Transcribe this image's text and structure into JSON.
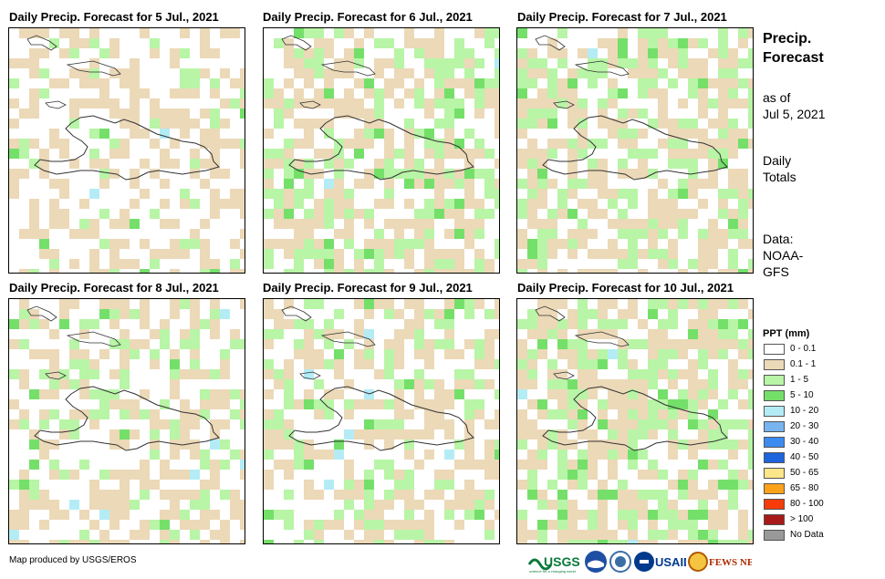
{
  "panels": [
    {
      "title": "Daily Precip. Forecast for 5 Jul., 2021",
      "seed": 11,
      "wetness": 0.15
    },
    {
      "title": "Daily Precip. Forecast for 6 Jul., 2021",
      "seed": 23,
      "wetness": 0.45
    },
    {
      "title": "Daily Precip. Forecast for 7 Jul., 2021",
      "seed": 37,
      "wetness": 0.5
    },
    {
      "title": "Daily Precip. Forecast for 8 Jul., 2021",
      "seed": 41,
      "wetness": 0.3
    },
    {
      "title": "Daily Precip. Forecast for 9 Jul., 2021",
      "seed": 53,
      "wetness": 0.28
    },
    {
      "title": "Daily Precip. Forecast for 10 Jul., 2021",
      "seed": 67,
      "wetness": 0.6
    }
  ],
  "side": {
    "title_line1": "Precip.",
    "title_line2": "Forecast",
    "asof_line1": "as of",
    "asof_line2": "Jul 5, 2021",
    "totals_line1": "Daily",
    "totals_line2": "Totals",
    "data_line1": "Data:",
    "data_line2": "NOAA-",
    "data_line3": "GFS"
  },
  "legend": {
    "title": "PPT (mm)",
    "items": [
      {
        "label": "0 - 0.1",
        "color": "#ffffff"
      },
      {
        "label": "0.1 - 1",
        "color": "#ecd9b8"
      },
      {
        "label": "1 - 5",
        "color": "#b8f5a6"
      },
      {
        "label": "5 - 10",
        "color": "#74e06a"
      },
      {
        "label": "10 - 20",
        "color": "#b4ecf6"
      },
      {
        "label": "20 - 30",
        "color": "#78b4f0"
      },
      {
        "label": "30 - 40",
        "color": "#3c8cf0"
      },
      {
        "label": "40 - 50",
        "color": "#1e64dc"
      },
      {
        "label": "50 - 65",
        "color": "#fde68a"
      },
      {
        "label": "65 - 80",
        "color": "#fba21a"
      },
      {
        "label": "80 - 100",
        "color": "#f53c0a"
      },
      {
        "label": "> 100",
        "color": "#a81a1a"
      },
      {
        "label": "No Data",
        "color": "#999999"
      }
    ]
  },
  "credit": "Map produced by USGS/EROS",
  "logos": {
    "usgs": "USGS",
    "usaid": "USAID",
    "fewsnet": "FEWS NET",
    "usgs_tagline": "science for a changing world"
  }
}
